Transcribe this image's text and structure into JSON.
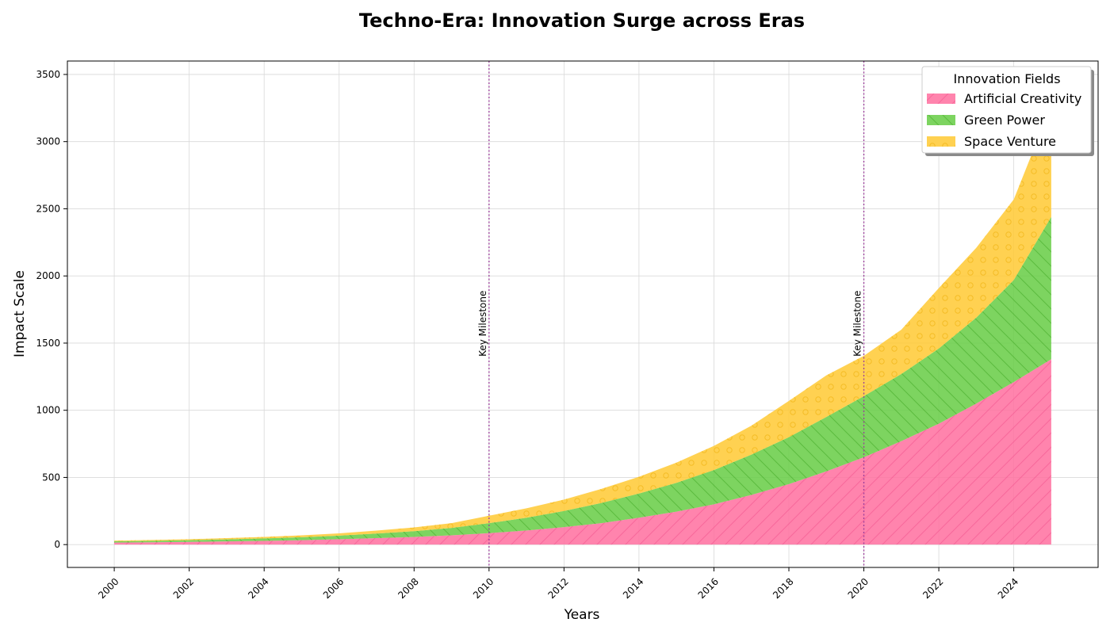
{
  "chart_data": {
    "type": "area",
    "stacked": true,
    "title": "Techno-Era: Innovation Surge across Eras",
    "xlabel": "Years",
    "ylabel": "Impact Scale",
    "x": [
      2000,
      2001,
      2002,
      2003,
      2004,
      2005,
      2006,
      2007,
      2008,
      2009,
      2010,
      2011,
      2012,
      2013,
      2014,
      2015,
      2016,
      2017,
      2018,
      2019,
      2020,
      2021,
      2022,
      2023,
      2024,
      2025
    ],
    "series": [
      {
        "name": "Artificial Creativity",
        "color": "#ff6f9f",
        "hatch": "forward-diagonal",
        "values": [
          15,
          17,
          20,
          24,
          28,
          33,
          40,
          48,
          57,
          69,
          85,
          105,
          130,
          160,
          200,
          245,
          300,
          370,
          450,
          545,
          650,
          770,
          900,
          1050,
          1210,
          1380
        ]
      },
      {
        "name": "Green Power",
        "color": "#66cc44",
        "hatch": "back-diagonal",
        "values": [
          10,
          11,
          13,
          15,
          18,
          22,
          27,
          34,
          43,
          55,
          75,
          95,
          120,
          150,
          180,
          215,
          255,
          300,
          350,
          405,
          455,
          500,
          560,
          640,
          760,
          1060
        ]
      },
      {
        "name": "Space Venture",
        "color": "#ffc933",
        "hatch": "circles",
        "values": [
          5,
          6,
          7,
          9,
          11,
          14,
          17,
          22,
          28,
          36,
          55,
          70,
          85,
          105,
          125,
          150,
          180,
          215,
          270,
          310,
          300,
          330,
          450,
          520,
          600,
          830
        ]
      }
    ],
    "xlim": [
      1998.75,
      2026.25
    ],
    "ylim": [
      -170,
      3600
    ],
    "xticks": [
      2000,
      2002,
      2004,
      2006,
      2008,
      2010,
      2012,
      2014,
      2016,
      2018,
      2020,
      2022,
      2024
    ],
    "yticks": [
      0,
      500,
      1000,
      1500,
      2000,
      2500,
      3000,
      3500
    ],
    "grid": true,
    "legend": {
      "title": "Innovation Fields",
      "placement": "top-right"
    },
    "annotations": [
      {
        "x": 2010,
        "y": 1400,
        "text": "Key Milestone",
        "line": "vertical-dotted",
        "color": "#9b3d9b"
      },
      {
        "x": 2020,
        "y": 1400,
        "text": "Key Milestone",
        "line": "vertical-dotted",
        "color": "#9b3d9b"
      }
    ]
  }
}
